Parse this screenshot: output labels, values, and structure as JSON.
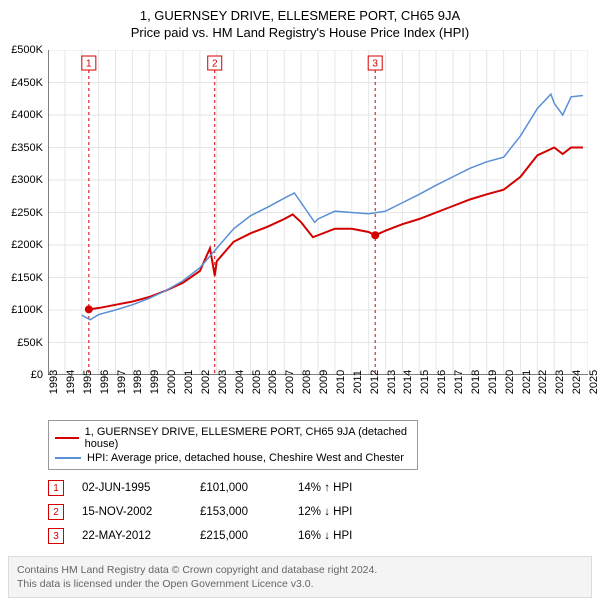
{
  "titles": {
    "line1": "1, GUERNSEY DRIVE, ELLESMERE PORT, CH65 9JA",
    "line2": "Price paid vs. HM Land Registry's House Price Index (HPI)"
  },
  "chart": {
    "type": "line",
    "background_color": "#ffffff",
    "grid_color": "#e6e6e6",
    "x": {
      "min": 1993,
      "max": 2025,
      "tick_step": 1,
      "labels": [
        "1993",
        "1994",
        "1995",
        "1996",
        "1997",
        "1998",
        "1999",
        "2000",
        "2001",
        "2002",
        "2003",
        "2004",
        "2005",
        "2006",
        "2007",
        "2008",
        "2009",
        "2010",
        "2011",
        "2012",
        "2013",
        "2014",
        "2015",
        "2016",
        "2017",
        "2018",
        "2019",
        "2020",
        "2021",
        "2022",
        "2023",
        "2024",
        "2025"
      ]
    },
    "y": {
      "min": 0,
      "max": 500000,
      "tick_step": 50000,
      "labels": [
        "£0",
        "£50K",
        "£100K",
        "£150K",
        "£200K",
        "£250K",
        "£300K",
        "£350K",
        "£400K",
        "£450K",
        "£500K"
      ]
    },
    "series": [
      {
        "name": "property",
        "label": "1, GUERNSEY DRIVE, ELLESMERE PORT, CH65 9JA (detached house)",
        "color": "#d40000",
        "width": 2,
        "points": [
          [
            1995.42,
            101000
          ],
          [
            1996,
            103000
          ],
          [
            1997,
            108000
          ],
          [
            1998,
            113000
          ],
          [
            1999,
            120000
          ],
          [
            2000,
            130000
          ],
          [
            2001,
            142000
          ],
          [
            2002,
            160000
          ],
          [
            2002.6,
            195000
          ],
          [
            2002.88,
            153000
          ],
          [
            2003,
            175000
          ],
          [
            2004,
            205000
          ],
          [
            2005,
            218000
          ],
          [
            2006,
            228000
          ],
          [
            2007,
            240000
          ],
          [
            2007.5,
            247000
          ],
          [
            2008,
            235000
          ],
          [
            2008.7,
            212000
          ],
          [
            2009,
            215000
          ],
          [
            2010,
            225000
          ],
          [
            2011,
            225000
          ],
          [
            2012,
            220000
          ],
          [
            2012.39,
            215000
          ],
          [
            2013,
            222000
          ],
          [
            2014,
            232000
          ],
          [
            2015,
            240000
          ],
          [
            2016,
            250000
          ],
          [
            2017,
            260000
          ],
          [
            2018,
            270000
          ],
          [
            2019,
            278000
          ],
          [
            2020,
            285000
          ],
          [
            2021,
            305000
          ],
          [
            2022,
            338000
          ],
          [
            2023,
            350000
          ],
          [
            2023.5,
            340000
          ],
          [
            2024,
            350000
          ],
          [
            2024.7,
            350000
          ]
        ],
        "dot_start": [
          1995.42,
          101000
        ],
        "dot_event": [
          2012.39,
          215000
        ]
      },
      {
        "name": "hpi",
        "label": "HPI: Average price, detached house, Cheshire West and Chester",
        "color": "#5b8fd6",
        "width": 1.5,
        "points": [
          [
            1995,
            92000
          ],
          [
            1995.5,
            85000
          ],
          [
            1996,
            93000
          ],
          [
            1997,
            100000
          ],
          [
            1998,
            108000
          ],
          [
            1999,
            118000
          ],
          [
            2000,
            130000
          ],
          [
            2001,
            145000
          ],
          [
            2002,
            165000
          ],
          [
            2003,
            195000
          ],
          [
            2004,
            225000
          ],
          [
            2005,
            245000
          ],
          [
            2006,
            258000
          ],
          [
            2007,
            272000
          ],
          [
            2007.6,
            280000
          ],
          [
            2008,
            265000
          ],
          [
            2008.8,
            235000
          ],
          [
            2009,
            240000
          ],
          [
            2010,
            252000
          ],
          [
            2011,
            250000
          ],
          [
            2012,
            248000
          ],
          [
            2013,
            252000
          ],
          [
            2014,
            265000
          ],
          [
            2015,
            278000
          ],
          [
            2016,
            292000
          ],
          [
            2017,
            305000
          ],
          [
            2018,
            318000
          ],
          [
            2019,
            328000
          ],
          [
            2020,
            335000
          ],
          [
            2021,
            368000
          ],
          [
            2022,
            410000
          ],
          [
            2022.8,
            432000
          ],
          [
            2023,
            418000
          ],
          [
            2023.5,
            400000
          ],
          [
            2024,
            428000
          ],
          [
            2024.7,
            430000
          ]
        ]
      }
    ],
    "event_lines": [
      {
        "num": "1",
        "x": 1995.42,
        "color": "#d40000"
      },
      {
        "num": "2",
        "x": 2002.88,
        "color": "#d40000"
      },
      {
        "num": "3",
        "x": 2012.39,
        "color": "#d40000"
      }
    ]
  },
  "legend": {
    "items": [
      {
        "color": "#d40000",
        "label": "1, GUERNSEY DRIVE, ELLESMERE PORT, CH65 9JA (detached house)"
      },
      {
        "color": "#5b8fd6",
        "label": "HPI: Average price, detached house, Cheshire West and Chester"
      }
    ]
  },
  "events_table": {
    "marker_color": "#d40000",
    "rows": [
      {
        "num": "1",
        "date": "02-JUN-1995",
        "price": "£101,000",
        "delta": "14% ↑ HPI"
      },
      {
        "num": "2",
        "date": "15-NOV-2002",
        "price": "£153,000",
        "delta": "12% ↓ HPI"
      },
      {
        "num": "3",
        "date": "22-MAY-2012",
        "price": "£215,000",
        "delta": "16% ↓ HPI"
      }
    ]
  },
  "footer": {
    "line1": "Contains HM Land Registry data © Crown copyright and database right 2024.",
    "line2": "This data is licensed under the Open Government Licence v3.0."
  }
}
